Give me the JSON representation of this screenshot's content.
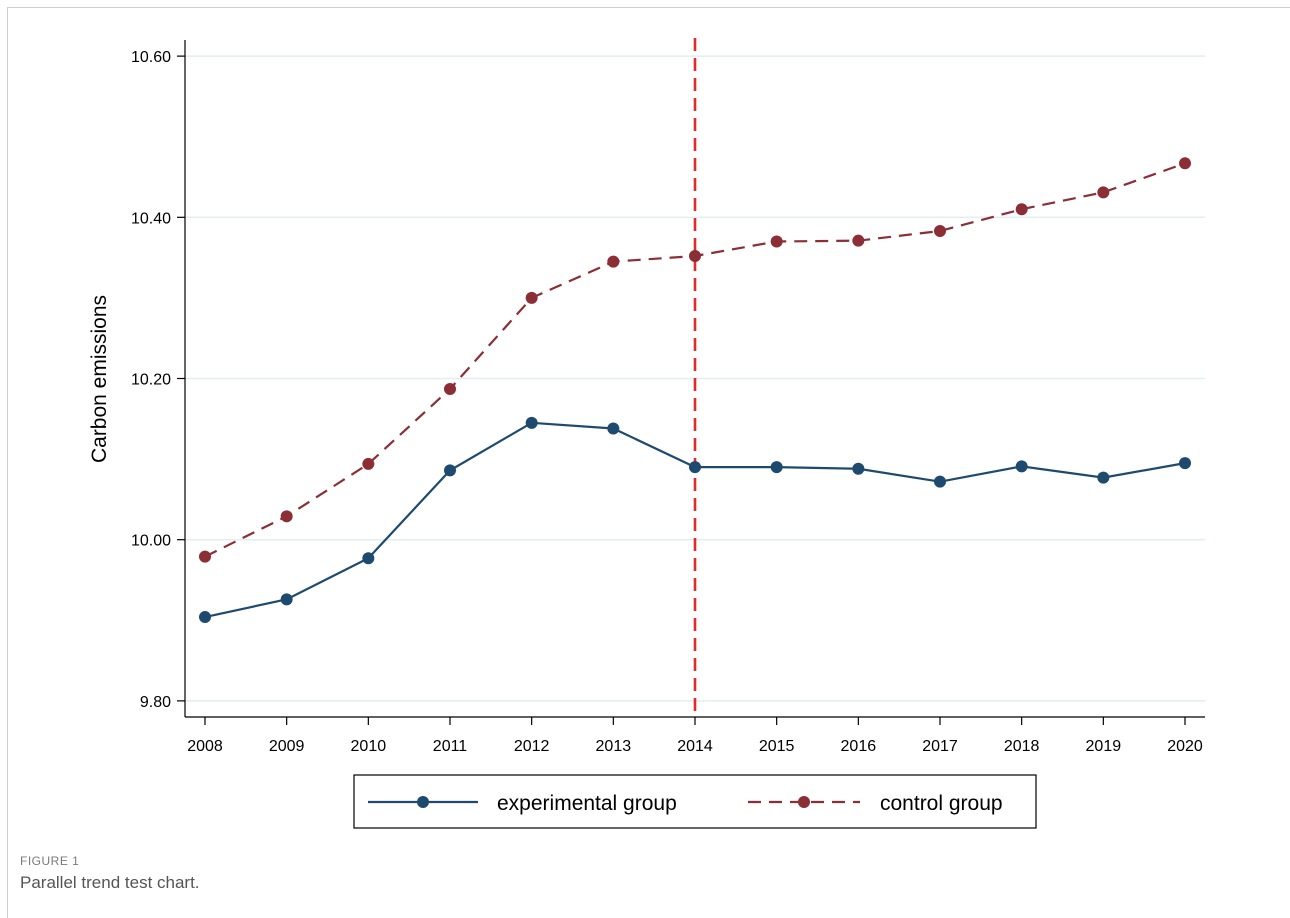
{
  "caption": {
    "label": "FIGURE 1",
    "text": "Parallel trend test chart."
  },
  "colors": {
    "experimental": "#1d4a6e",
    "control": "#8b2e35",
    "vline": "#e02b2b",
    "grid": "#e3eef0",
    "axis": "#000000"
  },
  "chart_data": {
    "type": "line",
    "title": "",
    "xlabel": "",
    "ylabel": "Carbon emissions",
    "x": [
      2008,
      2009,
      2010,
      2011,
      2012,
      2013,
      2014,
      2015,
      2016,
      2017,
      2018,
      2019,
      2020
    ],
    "x_tick_labels": [
      "2008",
      "2009",
      "2010",
      "2011",
      "2012",
      "2013",
      "2014",
      "2015",
      "2016",
      "2017",
      "2018",
      "2019",
      "2020"
    ],
    "ylim": [
      9.78,
      10.62
    ],
    "y_ticks": [
      9.8,
      10.0,
      10.2,
      10.4,
      10.6
    ],
    "y_tick_labels": [
      "9.80",
      "10.00",
      "10.20",
      "10.40",
      "10.60"
    ],
    "grid": "horizontal",
    "reference_line": {
      "x": 2014,
      "style": "dashed"
    },
    "legend": {
      "placement": "bottom"
    },
    "series": [
      {
        "name": "experimental group",
        "style": "solid",
        "values": [
          9.904,
          9.926,
          9.977,
          10.086,
          10.145,
          10.138,
          10.09,
          10.09,
          10.088,
          10.072,
          10.091,
          10.077,
          10.095
        ]
      },
      {
        "name": "control group",
        "style": "dashed",
        "values": [
          9.979,
          10.029,
          10.094,
          10.187,
          10.3,
          10.345,
          10.352,
          10.37,
          10.371,
          10.383,
          10.41,
          10.431,
          10.467
        ]
      }
    ]
  }
}
